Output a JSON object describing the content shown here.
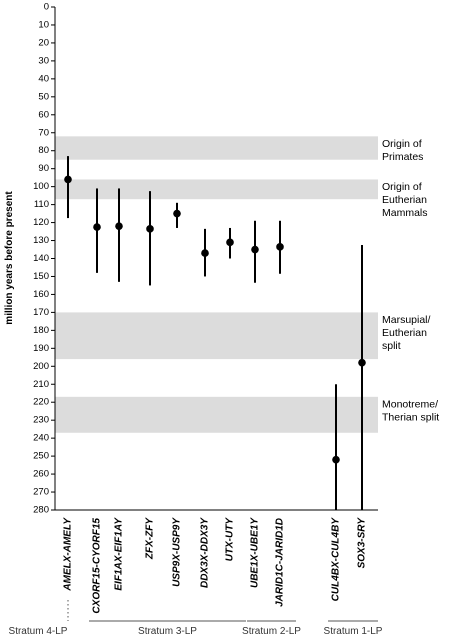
{
  "chart_data": {
    "type": "errorbar",
    "y_label": "million years before present",
    "ylim": [
      0,
      280
    ],
    "yticks": [
      0,
      10,
      20,
      30,
      40,
      50,
      60,
      70,
      80,
      90,
      100,
      110,
      120,
      130,
      140,
      150,
      160,
      170,
      180,
      190,
      200,
      210,
      220,
      230,
      240,
      250,
      260,
      270,
      280
    ],
    "inverted": true,
    "color": "#000000",
    "categories": [
      "AMELX-AMELY",
      "CXORF15-CYORF15",
      "EIF1AX-EIF1AY",
      "ZFX-ZFY",
      "USP9X-USP9Y",
      "DDX3X-DDX3Y",
      "UTX-UTY",
      "UBE1X-UBE1Y",
      "JARID1C-JARID1D",
      "CUL4BX-CUL4BY",
      "SOX3-SRY"
    ],
    "values": [
      96,
      122.5,
      122,
      123.5,
      115,
      137,
      131,
      135,
      133.5,
      252,
      198
    ],
    "lower": [
      83,
      101,
      101,
      102.5,
      109,
      123.5,
      123,
      119,
      119,
      210,
      132.5
    ],
    "upper": [
      117.5,
      148,
      153,
      155,
      123,
      150,
      140,
      153.5,
      148.5,
      280,
      280
    ],
    "bands": [
      {
        "label": [
          "Origin of",
          "Primates"
        ],
        "from": 72,
        "to": 85,
        "color": "#dcdcdc"
      },
      {
        "label": [
          "Origin of",
          "Eutherian",
          "Mammals"
        ],
        "from": 96,
        "to": 107,
        "color": "#dcdcdc"
      },
      {
        "label": [
          "Marsupial/",
          "Eutherian",
          "split"
        ],
        "from": 170,
        "to": 196,
        "color": "#dcdcdc"
      },
      {
        "label": [
          "Monotreme/",
          "Therian split"
        ],
        "from": 217,
        "to": 237,
        "color": "#dcdcdc"
      }
    ],
    "strata": [
      {
        "label": "Stratum 4-LP",
        "first": 0,
        "last": 0,
        "style": "dotted"
      },
      {
        "label": "Stratum 3-LP",
        "first": 1,
        "last": 6,
        "style": "solid"
      },
      {
        "label": "Stratum 2-LP",
        "first": 7,
        "last": 8,
        "style": "solid"
      },
      {
        "label": "Stratum 1-LP",
        "first": 9,
        "last": 10,
        "style": "solid"
      }
    ]
  }
}
